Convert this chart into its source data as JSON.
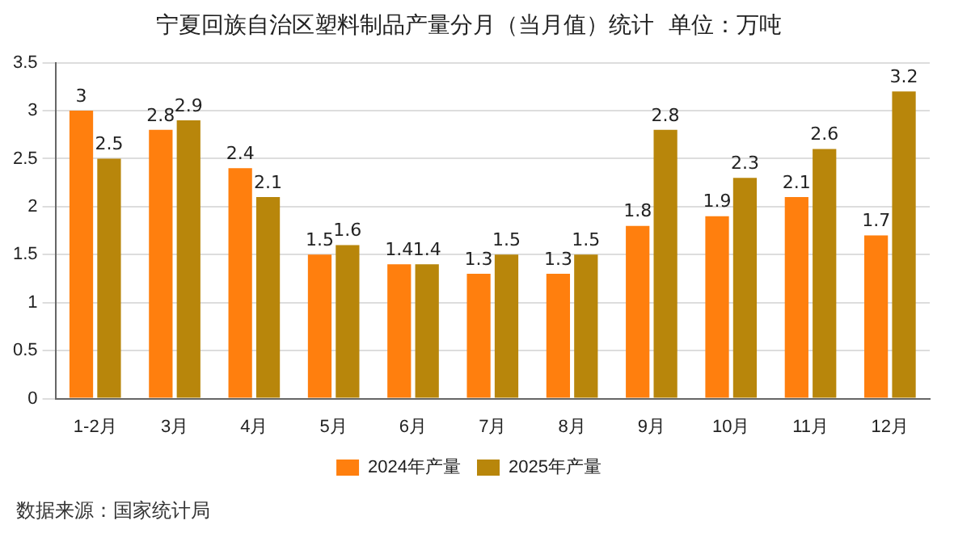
{
  "chart_data": {
    "type": "bar",
    "title": "宁夏回族自治区塑料制品产量分月（当月值）统计  单位：万吨",
    "categories": [
      "1-2月",
      "3月",
      "4月",
      "5月",
      "6月",
      "7月",
      "8月",
      "9月",
      "10月",
      "11月",
      "12月"
    ],
    "series": [
      {
        "name": "2024年产量",
        "color": "#ff7f0e",
        "values": [
          3,
          2.8,
          2.4,
          1.5,
          1.4,
          1.3,
          1.3,
          1.8,
          1.9,
          2.1,
          1.7
        ]
      },
      {
        "name": "2025年产量",
        "color": "#b8860b",
        "values": [
          2.5,
          2.9,
          2.1,
          1.6,
          1.4,
          1.5,
          1.5,
          2.8,
          2.3,
          2.6,
          3.2
        ]
      }
    ],
    "ylim": [
      0,
      3.5
    ],
    "yticks": [
      0,
      0.5,
      1,
      1.5,
      2,
      2.5,
      3,
      3.5
    ],
    "grid": "y",
    "legend": "bottom",
    "data_labels": true,
    "annotations": [
      "数据来源：国家统计局"
    ]
  }
}
